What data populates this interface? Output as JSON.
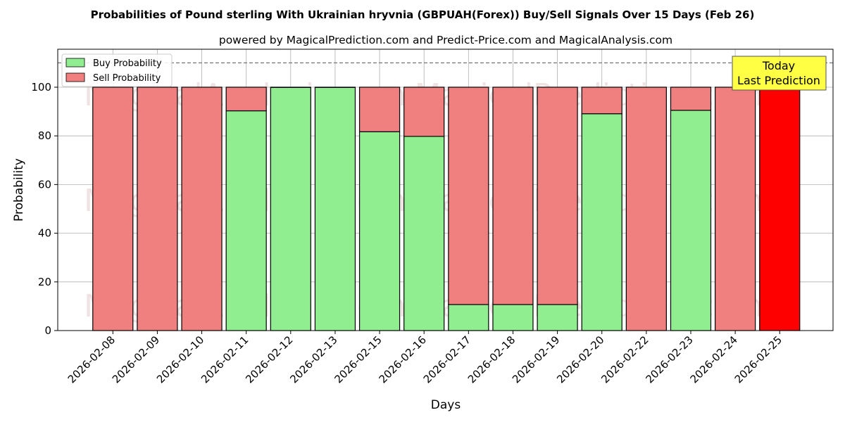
{
  "chart_data": {
    "type": "bar",
    "stacked": true,
    "title": "Probabilities of Pound sterling With Ukrainian hryvnia (GBPUAH(Forex)) Buy/Sell Signals Over 15 Days (Feb 26)",
    "subtitle": "powered by MagicalPrediction.com and Predict-Price.com and MagicalAnalysis.com",
    "xlabel": "Days",
    "ylabel": "Probability",
    "ylim": [
      0,
      115.6
    ],
    "yticks": [
      0,
      20,
      40,
      60,
      80,
      100
    ],
    "grid": true,
    "reference_line": 110,
    "categories": [
      "2026-02-08",
      "2026-02-09",
      "2026-02-10",
      "2026-02-11",
      "2026-02-12",
      "2026-02-13",
      "2026-02-15",
      "2026-02-16",
      "2026-02-17",
      "2026-02-18",
      "2026-02-19",
      "2026-02-20",
      "2026-02-22",
      "2026-02-23",
      "2026-02-24",
      "2026-02-25"
    ],
    "series": [
      {
        "name": "Buy Probability",
        "color": "#90EE90",
        "values": [
          0,
          0,
          0,
          90.3,
          99.9,
          99.9,
          81.7,
          79.8,
          10.7,
          10.7,
          10.7,
          89.1,
          0,
          90.5,
          0,
          0
        ]
      },
      {
        "name": "Sell Probability",
        "color": "#F08080",
        "values": [
          100,
          100,
          100,
          9.7,
          0.1,
          0.1,
          18.3,
          20.2,
          89.3,
          89.3,
          89.3,
          10.9,
          100,
          9.5,
          100,
          100
        ]
      }
    ],
    "highlight_color": "#FF0000",
    "legend_position": "top-left",
    "annotation": {
      "line1": "Today",
      "line2": "Last Prediction",
      "color": "#FFFF44"
    },
    "watermarks": [
      "MagicalAnalysis.com",
      "MagicalPrediction.com"
    ]
  }
}
